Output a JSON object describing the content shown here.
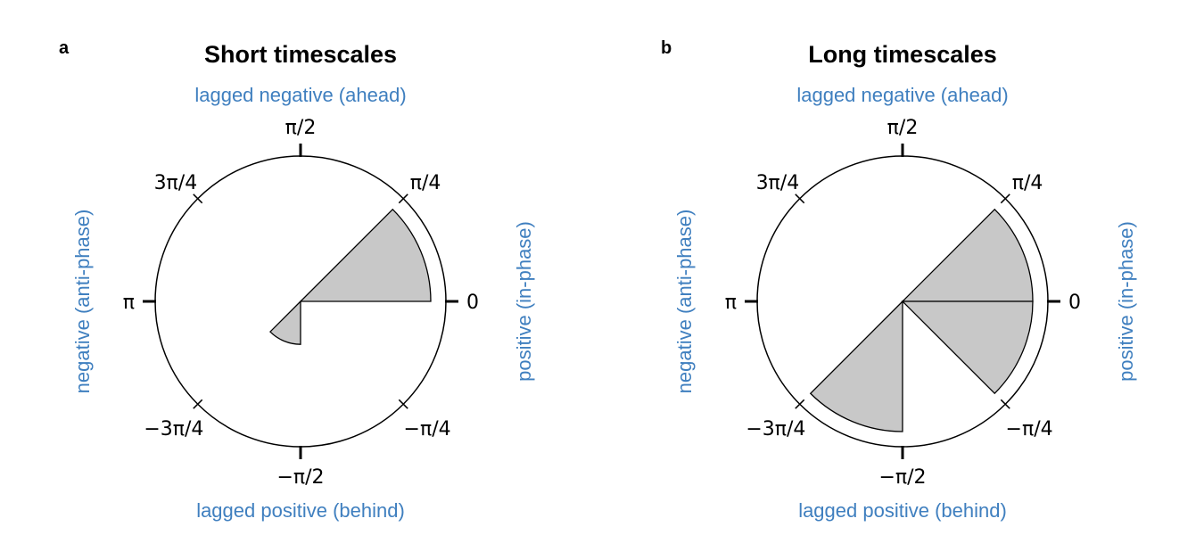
{
  "colors": {
    "side_label": "#3f7fbf",
    "sector_fill": "#c8c8c8",
    "stroke": "#000000"
  },
  "chart_data": [
    {
      "type": "rose",
      "panel_label": "a",
      "title": "Short timescales",
      "labels": {
        "top": "lagged negative (ahead)",
        "bottom": "lagged positive (behind)",
        "left": "negative (anti-phase)",
        "right": "positive (in-phase)"
      },
      "tick_labels": [
        "0",
        "π/4",
        "π/2",
        "3π/4",
        "π",
        "−3π/4",
        "−π/2",
        "−π/4"
      ],
      "rmax": 1.0,
      "sectors": [
        {
          "theta_start": 0.0,
          "theta_end": 0.785,
          "r": 1.0
        },
        {
          "theta_start": -2.356,
          "theta_end": -1.571,
          "r": 0.33
        }
      ]
    },
    {
      "type": "rose",
      "panel_label": "b",
      "title": "Long timescales",
      "labels": {
        "top": "lagged negative (ahead)",
        "bottom": "lagged positive (behind)",
        "left": "negative (anti-phase)",
        "right": "positive (in-phase)"
      },
      "tick_labels": [
        "0",
        "π/4",
        "π/2",
        "3π/4",
        "π",
        "−3π/4",
        "−π/2",
        "−π/4"
      ],
      "rmax": 1.0,
      "sectors": [
        {
          "theta_start": 0.0,
          "theta_end": 0.785,
          "r": 1.0
        },
        {
          "theta_start": -0.785,
          "theta_end": 0.0,
          "r": 1.0
        },
        {
          "theta_start": -2.356,
          "theta_end": -1.571,
          "r": 1.0
        }
      ]
    }
  ]
}
